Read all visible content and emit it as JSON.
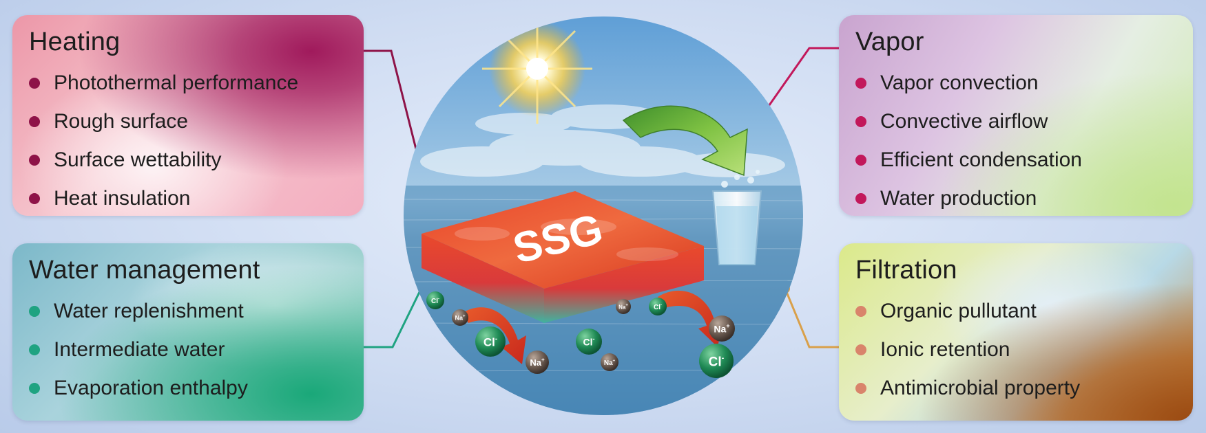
{
  "center_label": "SSG",
  "panels": {
    "heating": {
      "title": "Heating",
      "items": [
        "Photothermal performance",
        "Rough surface",
        "Surface wettability",
        "Heat insulation"
      ]
    },
    "water": {
      "title": "Water management",
      "items": [
        "Water replenishment",
        "Intermediate water",
        "Evaporation enthalpy"
      ]
    },
    "vapor": {
      "title": "Vapor",
      "items": [
        "Vapor convection",
        "Convective airflow",
        "Efficient condensation",
        "Water production"
      ]
    },
    "filtration": {
      "title": "Filtration",
      "items": [
        "Organic pullutant",
        "Ionic retention",
        "Antimicrobial property"
      ]
    }
  },
  "ions": {
    "chloride": "Cl",
    "sodium": "Na"
  },
  "colors": {
    "heating_accent": "#8e1348",
    "water_accent": "#1fa381",
    "vapor_accent": "#c2185b",
    "filtration_accent": "#d9a04a"
  }
}
